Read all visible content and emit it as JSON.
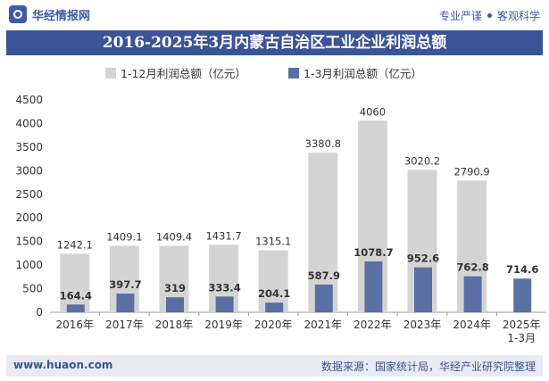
{
  "header": {
    "brand_name": "华经情报网",
    "tagline_left": "专业严谨",
    "tagline_right": "客观科学"
  },
  "title": "2016-2025年3月内蒙古自治区工业企业利润总额",
  "footer": {
    "site": "www.huaon.com",
    "source": "数据来源：国家统计局，华经产业研究院整理"
  },
  "colors": {
    "brand": "#3b5495",
    "series_full_year": "#d4d4d4",
    "series_q1": "#5a6fa3"
  },
  "chart_data": {
    "type": "bar",
    "categories": [
      "2016年",
      "2017年",
      "2018年",
      "2019年",
      "2020年",
      "2021年",
      "2022年",
      "2023年",
      "2024年",
      "2025年\n1-3月"
    ],
    "series": [
      {
        "name": "1-12月利润总额（亿元）",
        "values": [
          1242.1,
          1409.1,
          1409.4,
          1431.7,
          1315.1,
          3380.8,
          4060,
          3020.2,
          2790.9,
          null
        ],
        "labels": [
          "1242.1",
          "1409.1",
          "1409.4",
          "1431.7",
          "1315.1",
          "3380.8",
          "4060",
          "3020.2",
          "2790.9",
          ""
        ]
      },
      {
        "name": "1-3月利润总额（亿元）",
        "values": [
          164.4,
          397.7,
          319,
          333.4,
          204.1,
          587.9,
          1078.7,
          952.6,
          762.8,
          714.6
        ],
        "labels": [
          "164.4",
          "397.7",
          "319",
          "333.4",
          "204.1",
          "587.9",
          "1078.7",
          "952.6",
          "762.8",
          "714.6"
        ]
      }
    ],
    "ylim": [
      0,
      4500
    ],
    "yticks": [
      "0",
      "500",
      "1000",
      "1500",
      "2000",
      "2500",
      "3000",
      "3500",
      "4000",
      "4500"
    ],
    "legend_position": "top-left",
    "grid": false
  }
}
